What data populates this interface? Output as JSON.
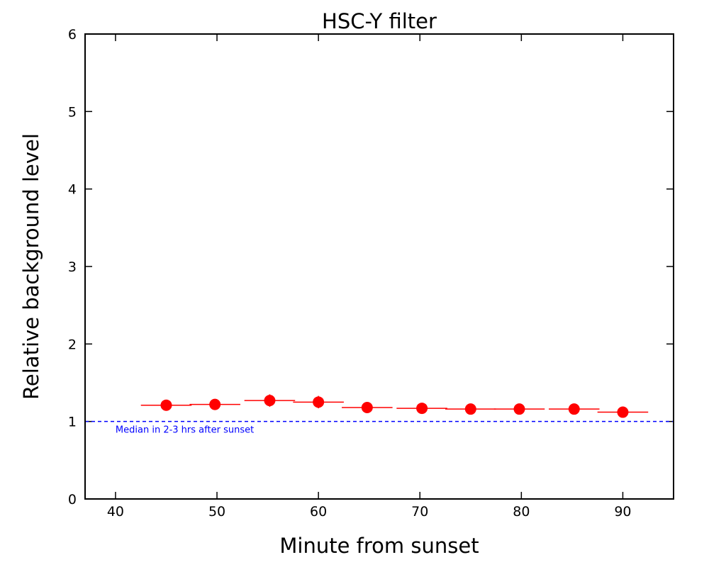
{
  "chart_data": {
    "type": "scatter",
    "title": "HSC-Y filter",
    "xlabel": "Minute from sunset",
    "ylabel": "Relative background level",
    "xlim": [
      37,
      95
    ],
    "ylim": [
      0,
      6
    ],
    "x_ticks": [
      40,
      50,
      60,
      70,
      80,
      90
    ],
    "y_ticks": [
      0,
      1,
      2,
      3,
      4,
      5,
      6
    ],
    "grid": false,
    "series": [
      {
        "color": "#ff0000",
        "points": [
          {
            "x": 45.0,
            "y": 1.21,
            "xerr": 2.5,
            "yerr": 0.03
          },
          {
            "x": 49.8,
            "y": 1.22,
            "xerr": 2.5,
            "yerr": 0.03
          },
          {
            "x": 55.2,
            "y": 1.27,
            "xerr": 2.5,
            "yerr": 0.08
          },
          {
            "x": 60.0,
            "y": 1.25,
            "xerr": 2.5,
            "yerr": 0.08
          },
          {
            "x": 64.8,
            "y": 1.18,
            "xerr": 2.5,
            "yerr": 0.03
          },
          {
            "x": 70.2,
            "y": 1.17,
            "xerr": 2.5,
            "yerr": 0.03
          },
          {
            "x": 75.0,
            "y": 1.16,
            "xerr": 2.5,
            "yerr": 0.03
          },
          {
            "x": 79.8,
            "y": 1.16,
            "xerr": 2.5,
            "yerr": 0.03
          },
          {
            "x": 85.2,
            "y": 1.16,
            "xerr": 2.5,
            "yerr": 0.03
          },
          {
            "x": 90.0,
            "y": 1.12,
            "xerr": 2.5,
            "yerr": 0.03
          }
        ]
      }
    ],
    "reference_line": {
      "y": 1.0,
      "style": "dashed",
      "color": "#0000ff",
      "label": "Median in 2-3 hrs after sunset"
    }
  }
}
